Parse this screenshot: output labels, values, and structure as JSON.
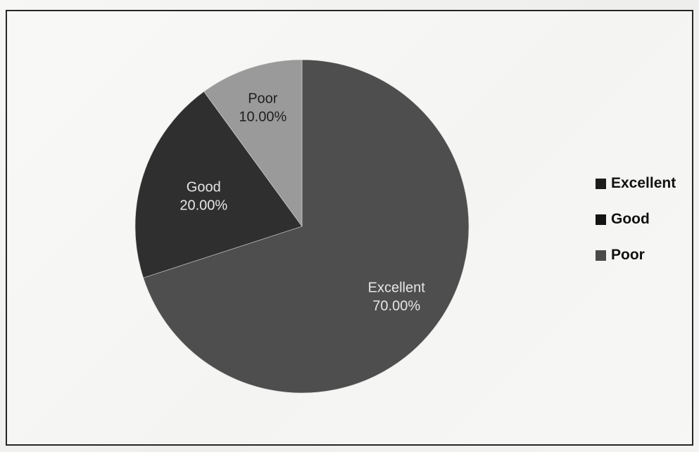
{
  "chart_data": {
    "type": "pie",
    "categories": [
      "Excellent",
      "Good",
      "Poor"
    ],
    "values": [
      70,
      20,
      10
    ],
    "data_labels": [
      {
        "name": "Excellent",
        "value": "70.00%"
      },
      {
        "name": "Good",
        "value": "20.00%"
      },
      {
        "name": "Poor",
        "value": "10.00%"
      }
    ],
    "colors": [
      "#4e4e4e",
      "#2f2f2f",
      "#9a9a9a"
    ],
    "legend_position": "right",
    "title": ""
  },
  "legend": [
    {
      "label": "Excellent",
      "color": "#1c1c1c"
    },
    {
      "label": "Good",
      "color": "#141414"
    },
    {
      "label": "Poor",
      "color": "#4a4a4a"
    }
  ]
}
